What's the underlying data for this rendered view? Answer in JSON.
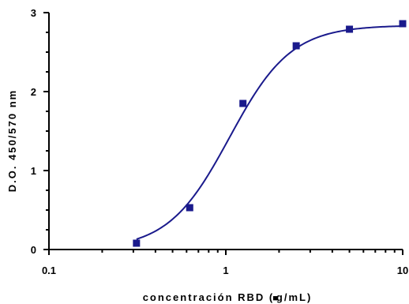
{
  "chart_data": {
    "type": "scatter",
    "title": "",
    "xlabel": "concentración RBD (",
    "xlabel_unit": "g/mL)",
    "xlabel_symbol": "■",
    "ylabel": "D.O. 450/570 nm",
    "x_scale": "log",
    "xlim": [
      0.1,
      10
    ],
    "ylim": [
      0,
      3
    ],
    "x_ticks": [
      {
        "value": 0.1,
        "label": "0.1"
      },
      {
        "value": 1,
        "label": "1"
      },
      {
        "value": 10,
        "label": "10"
      }
    ],
    "y_ticks": [
      {
        "value": 0,
        "label": "0"
      },
      {
        "value": 1,
        "label": "1"
      },
      {
        "value": 2,
        "label": "2"
      },
      {
        "value": 3,
        "label": "3"
      }
    ],
    "grid": false,
    "series": [
      {
        "marker": "square",
        "color": "#1a1a8c",
        "x": [
          0.3125,
          0.625,
          1.25,
          2.5,
          5,
          10
        ],
        "y": [
          0.08,
          0.53,
          1.85,
          2.58,
          2.79,
          2.86
        ]
      }
    ],
    "fit_curve": {
      "type": "sigmoidal",
      "color": "#1a1a8c",
      "bottom": 0.0,
      "top": 2.84,
      "ec50": 1.05,
      "hill": 2.5
    }
  }
}
